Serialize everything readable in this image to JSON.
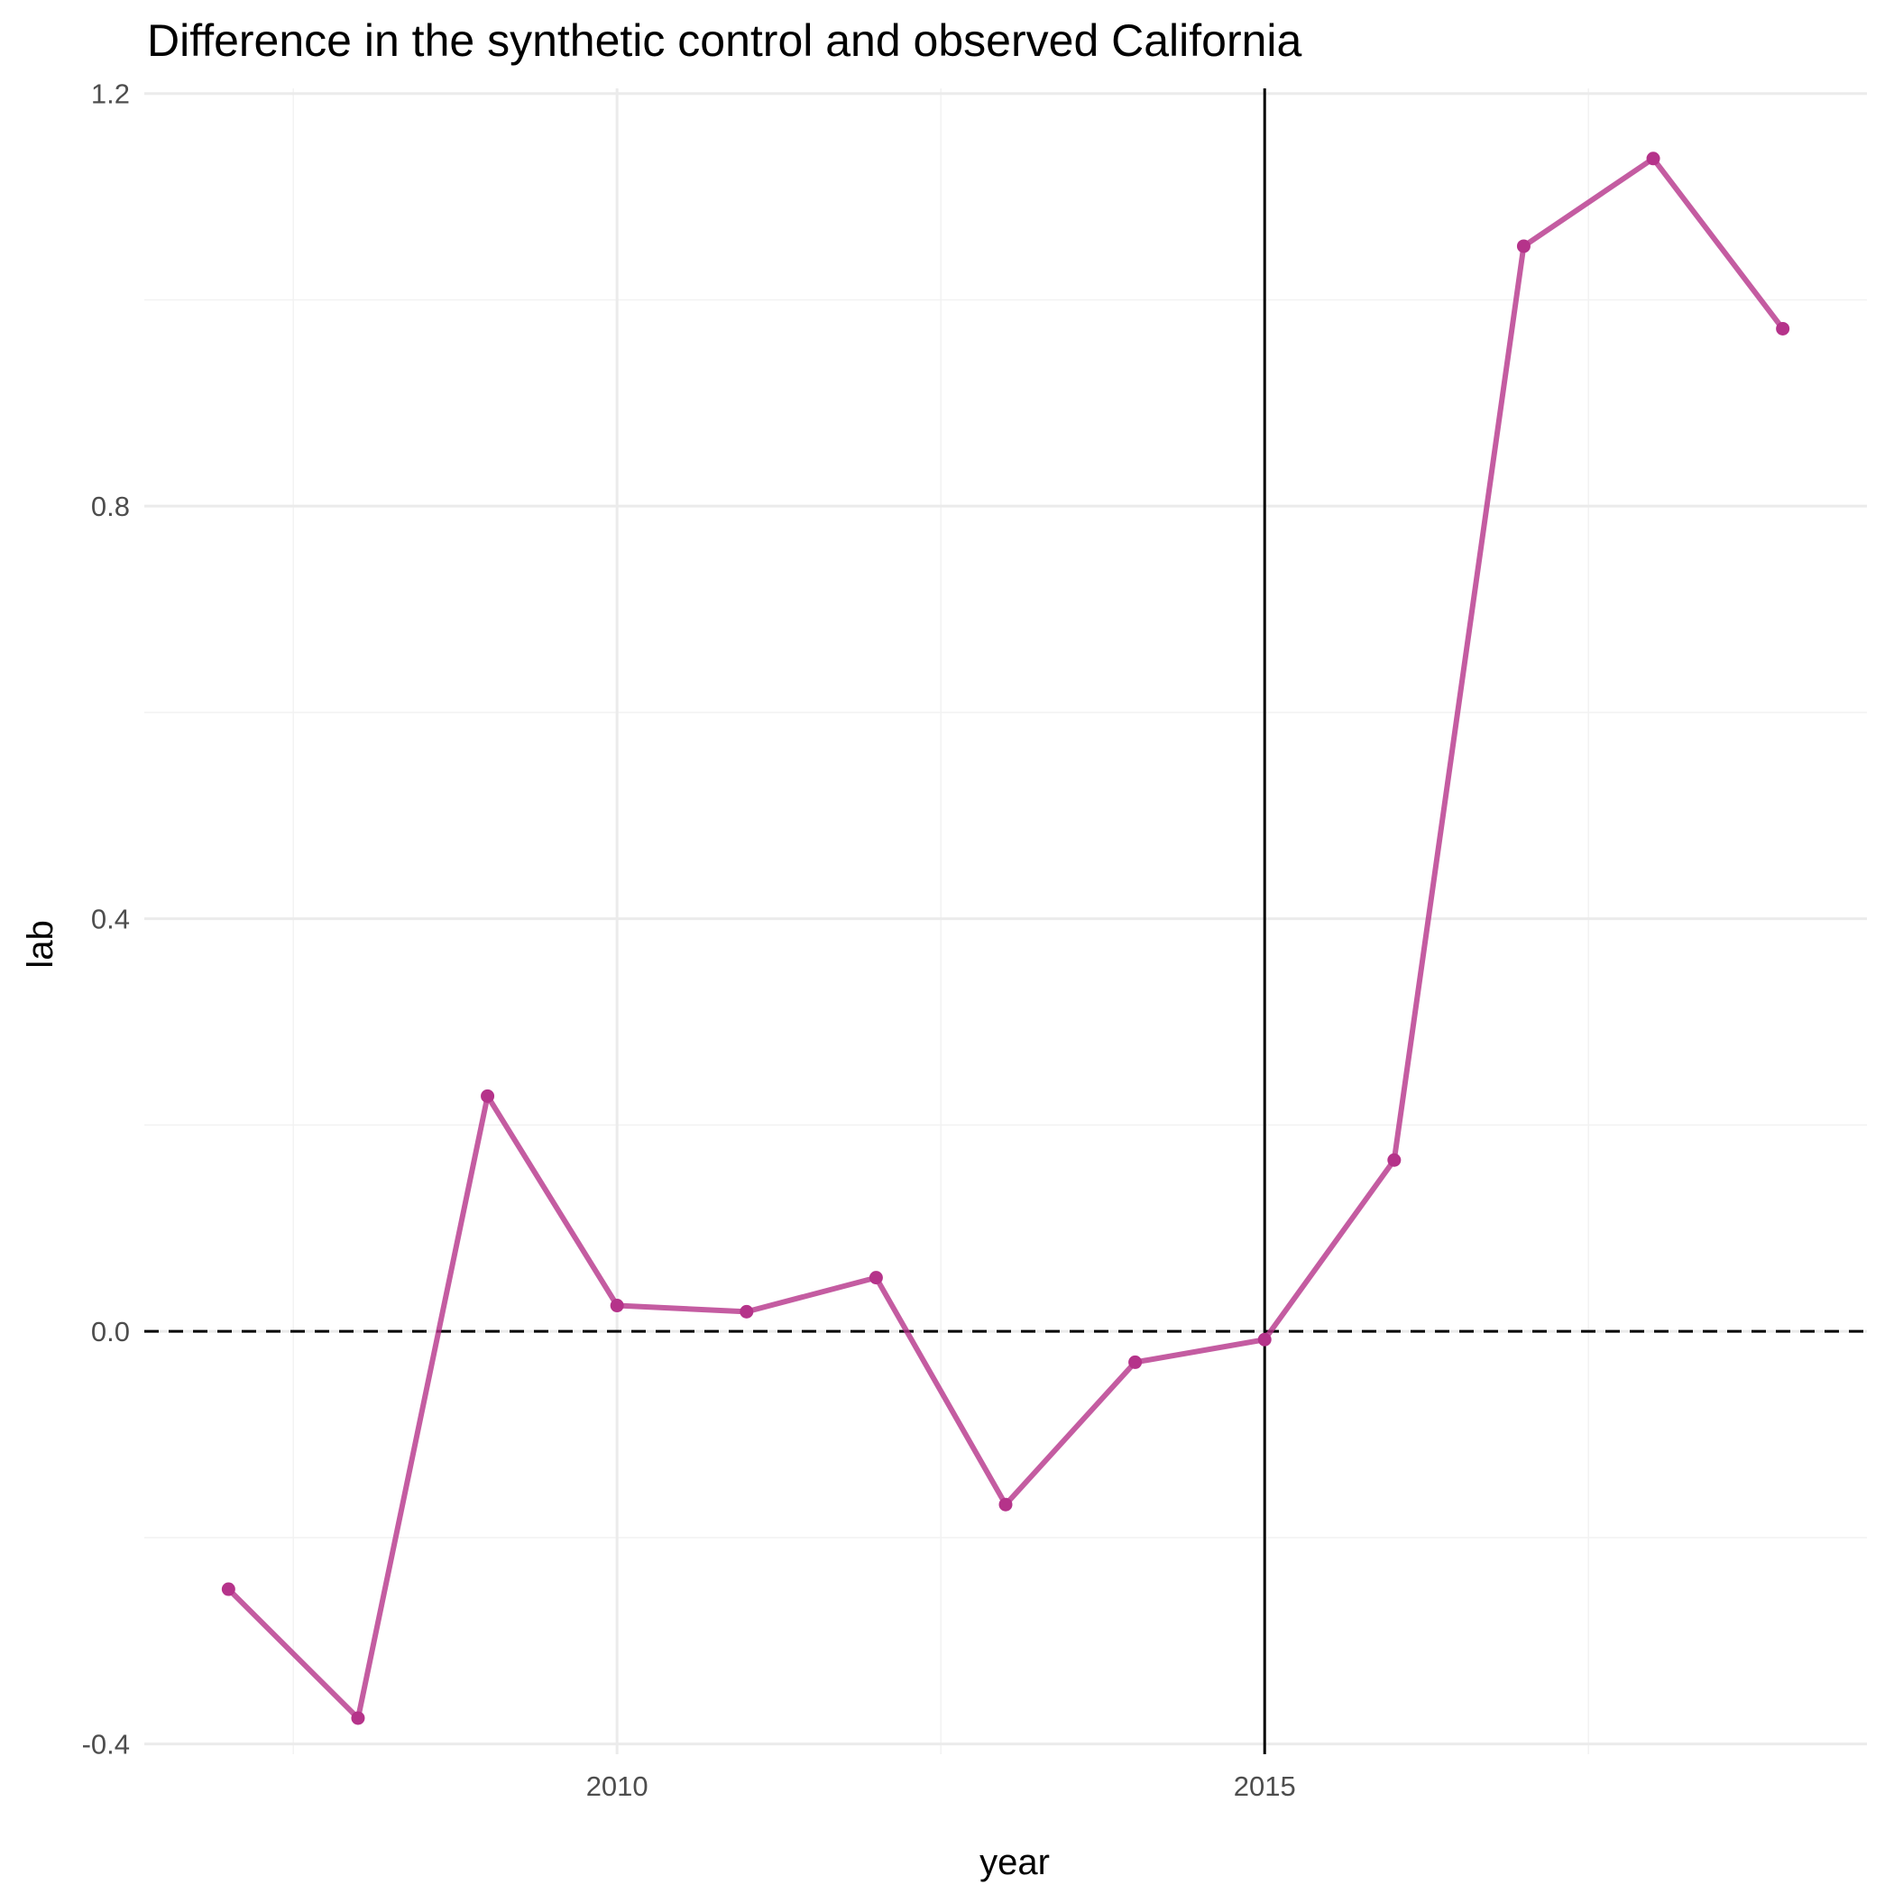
{
  "chart_data": {
    "type": "line",
    "title": "Difference in the synthetic control and observed California",
    "xlabel": "year",
    "ylabel": "lab",
    "xlim": [
      2006.35,
      2019.65
    ],
    "ylim": [
      -0.41,
      1.205
    ],
    "x_ticks": [
      2010,
      2015
    ],
    "x_minor_ticks": [
      2007.5,
      2012.5,
      2017.5
    ],
    "y_ticks": [
      -0.4,
      0.0,
      0.4,
      0.8,
      1.2
    ],
    "y_tick_labels": [
      "-0.4",
      "0.0",
      "0.4",
      "0.8",
      "1.2"
    ],
    "y_minor_ticks": [
      -0.2,
      0.2,
      0.6,
      1.0
    ],
    "grid": true,
    "series": [
      {
        "color": "#b5338a",
        "x": [
          2007,
          2008,
          2009,
          2010,
          2011,
          2012,
          2013,
          2014,
          2015,
          2016,
          2017,
          2018,
          2019
        ],
        "values": [
          -0.25,
          -0.375,
          0.228,
          0.025,
          0.019,
          0.052,
          -0.168,
          -0.03,
          -0.008,
          0.166,
          1.052,
          1.137,
          0.972
        ]
      }
    ],
    "reference_lines": [
      {
        "orientation": "vertical",
        "x": 2015,
        "style": "solid",
        "color": "#000000"
      },
      {
        "orientation": "horizontal",
        "y": 0,
        "style": "dashed",
        "color": "#000000"
      }
    ]
  }
}
